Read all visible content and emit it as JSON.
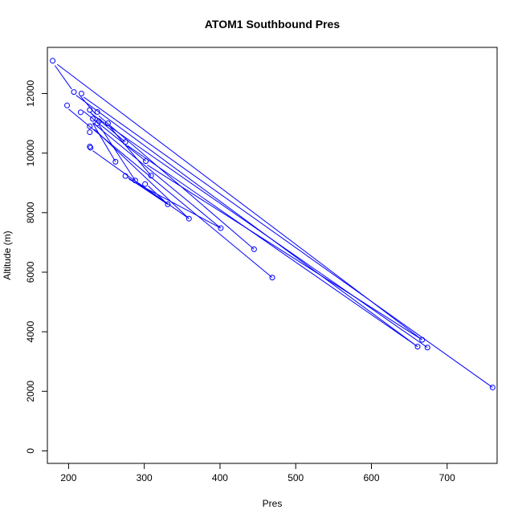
{
  "chart_data": {
    "type": "scatter",
    "title": "ATOM1 Southbound Pres",
    "xlabel": "Pres",
    "ylabel": "Altitude (m)",
    "xlim": [
      172,
      766
    ],
    "ylim": [
      -420,
      13550
    ],
    "x_ticks": [
      200,
      300,
      400,
      500,
      600,
      700
    ],
    "y_ticks": [
      0,
      2000,
      4000,
      6000,
      8000,
      10000,
      12000
    ],
    "series_color": "#0000ff",
    "grid": false,
    "points": [
      {
        "x": 179,
        "y": 13100
      },
      {
        "x": 207,
        "y": 12050
      },
      {
        "x": 217,
        "y": 12000
      },
      {
        "x": 198,
        "y": 11600
      },
      {
        "x": 228,
        "y": 11450
      },
      {
        "x": 238,
        "y": 11380
      },
      {
        "x": 216,
        "y": 11370
      },
      {
        "x": 232,
        "y": 11150
      },
      {
        "x": 240,
        "y": 11070
      },
      {
        "x": 238,
        "y": 11000
      },
      {
        "x": 252,
        "y": 11000
      },
      {
        "x": 228,
        "y": 10900
      },
      {
        "x": 228,
        "y": 10700
      },
      {
        "x": 275,
        "y": 10370
      },
      {
        "x": 228,
        "y": 10220
      },
      {
        "x": 229,
        "y": 10180
      },
      {
        "x": 302,
        "y": 9730
      },
      {
        "x": 262,
        "y": 9710
      },
      {
        "x": 309,
        "y": 9240
      },
      {
        "x": 275,
        "y": 9230
      },
      {
        "x": 288,
        "y": 9080
      },
      {
        "x": 301,
        "y": 8960
      },
      {
        "x": 331,
        "y": 8280
      },
      {
        "x": 359,
        "y": 7800
      },
      {
        "x": 401,
        "y": 7480
      },
      {
        "x": 445,
        "y": 6770
      },
      {
        "x": 469,
        "y": 5820
      },
      {
        "x": 667,
        "y": 3730
      },
      {
        "x": 661,
        "y": 3500
      },
      {
        "x": 674,
        "y": 3470
      },
      {
        "x": 760,
        "y": 2130
      }
    ],
    "segments": [
      [
        [
          185,
          12980
        ],
        [
          667,
          3730
        ]
      ],
      [
        [
          200,
          11480
        ],
        [
          469,
          5820
        ]
      ],
      [
        [
          210,
          11940
        ],
        [
          661,
          3500
        ]
      ],
      [
        [
          220,
          11880
        ],
        [
          760,
          2130
        ]
      ],
      [
        [
          230,
          11320
        ],
        [
          674,
          3470
        ]
      ],
      [
        [
          240,
          11250
        ],
        [
          445,
          6770
        ]
      ],
      [
        [
          232,
          11020
        ],
        [
          401,
          7480
        ]
      ],
      [
        [
          234,
          10800
        ],
        [
          359,
          7800
        ]
      ],
      [
        [
          232,
          10080
        ],
        [
          331,
          8280
        ]
      ],
      [
        [
          255,
          10870
        ],
        [
          309,
          9240
        ]
      ],
      [
        [
          278,
          10250
        ],
        [
          661,
          3500
        ]
      ],
      [
        [
          304,
          9600
        ],
        [
          667,
          3730
        ]
      ],
      [
        [
          280,
          9120
        ],
        [
          401,
          7480
        ]
      ],
      [
        [
          292,
          9000
        ],
        [
          359,
          7800
        ]
      ],
      [
        [
          305,
          8900
        ],
        [
          331,
          8280
        ]
      ],
      [
        [
          232,
          11000
        ],
        [
          262,
          9710
        ]
      ],
      [
        [
          228,
          11380
        ],
        [
          275,
          10370
        ]
      ],
      [
        [
          220,
          11400
        ],
        [
          302,
          9730
        ]
      ],
      [
        [
          216,
          11900
        ],
        [
          236,
          11300
        ]
      ],
      [
        [
          182,
          12940
        ],
        [
          204,
          12150
        ]
      ],
      [
        [
          278,
          9180
        ],
        [
          331,
          8280
        ]
      ],
      [
        [
          240,
          10950
        ],
        [
          288,
          9080
        ]
      ]
    ]
  }
}
